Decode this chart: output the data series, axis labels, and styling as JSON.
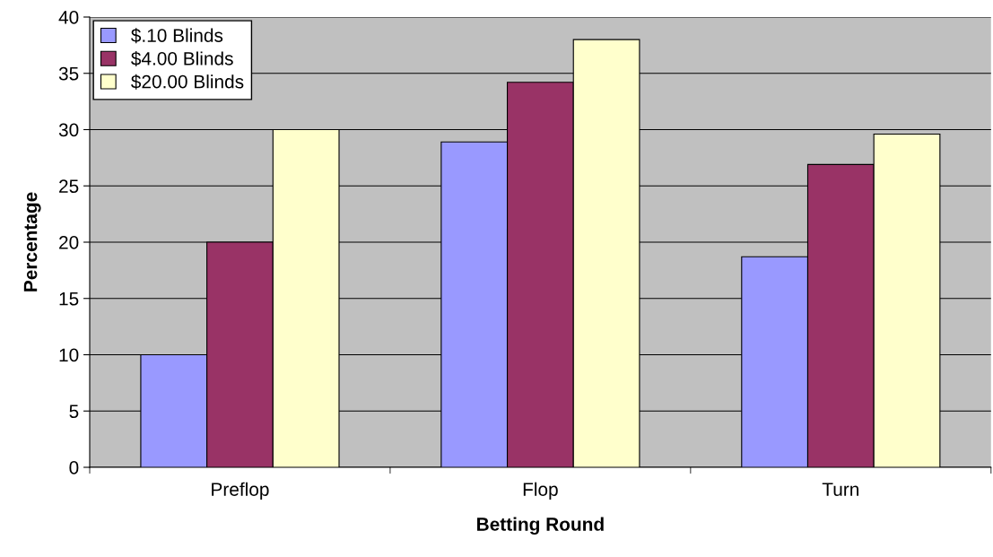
{
  "chart_data": {
    "type": "bar",
    "xlabel": "Betting Round",
    "ylabel": "Percentage",
    "categories": [
      "Preflop",
      "Flop",
      "Turn"
    ],
    "series": [
      {
        "name": "$.10 Blinds",
        "color": "#9999ff",
        "values": [
          10,
          28.9,
          18.7
        ]
      },
      {
        "name": "$4.00 Blinds",
        "color": "#993366",
        "values": [
          20,
          34.2,
          26.9
        ]
      },
      {
        "name": "$20.00 Blinds",
        "color": "#ffffcc",
        "values": [
          30,
          38.0,
          29.6
        ]
      }
    ],
    "ylim": [
      0,
      40
    ],
    "yticks": [
      0,
      5,
      10,
      15,
      20,
      25,
      30,
      35,
      40
    ],
    "grid": "y",
    "legend": "top left"
  }
}
